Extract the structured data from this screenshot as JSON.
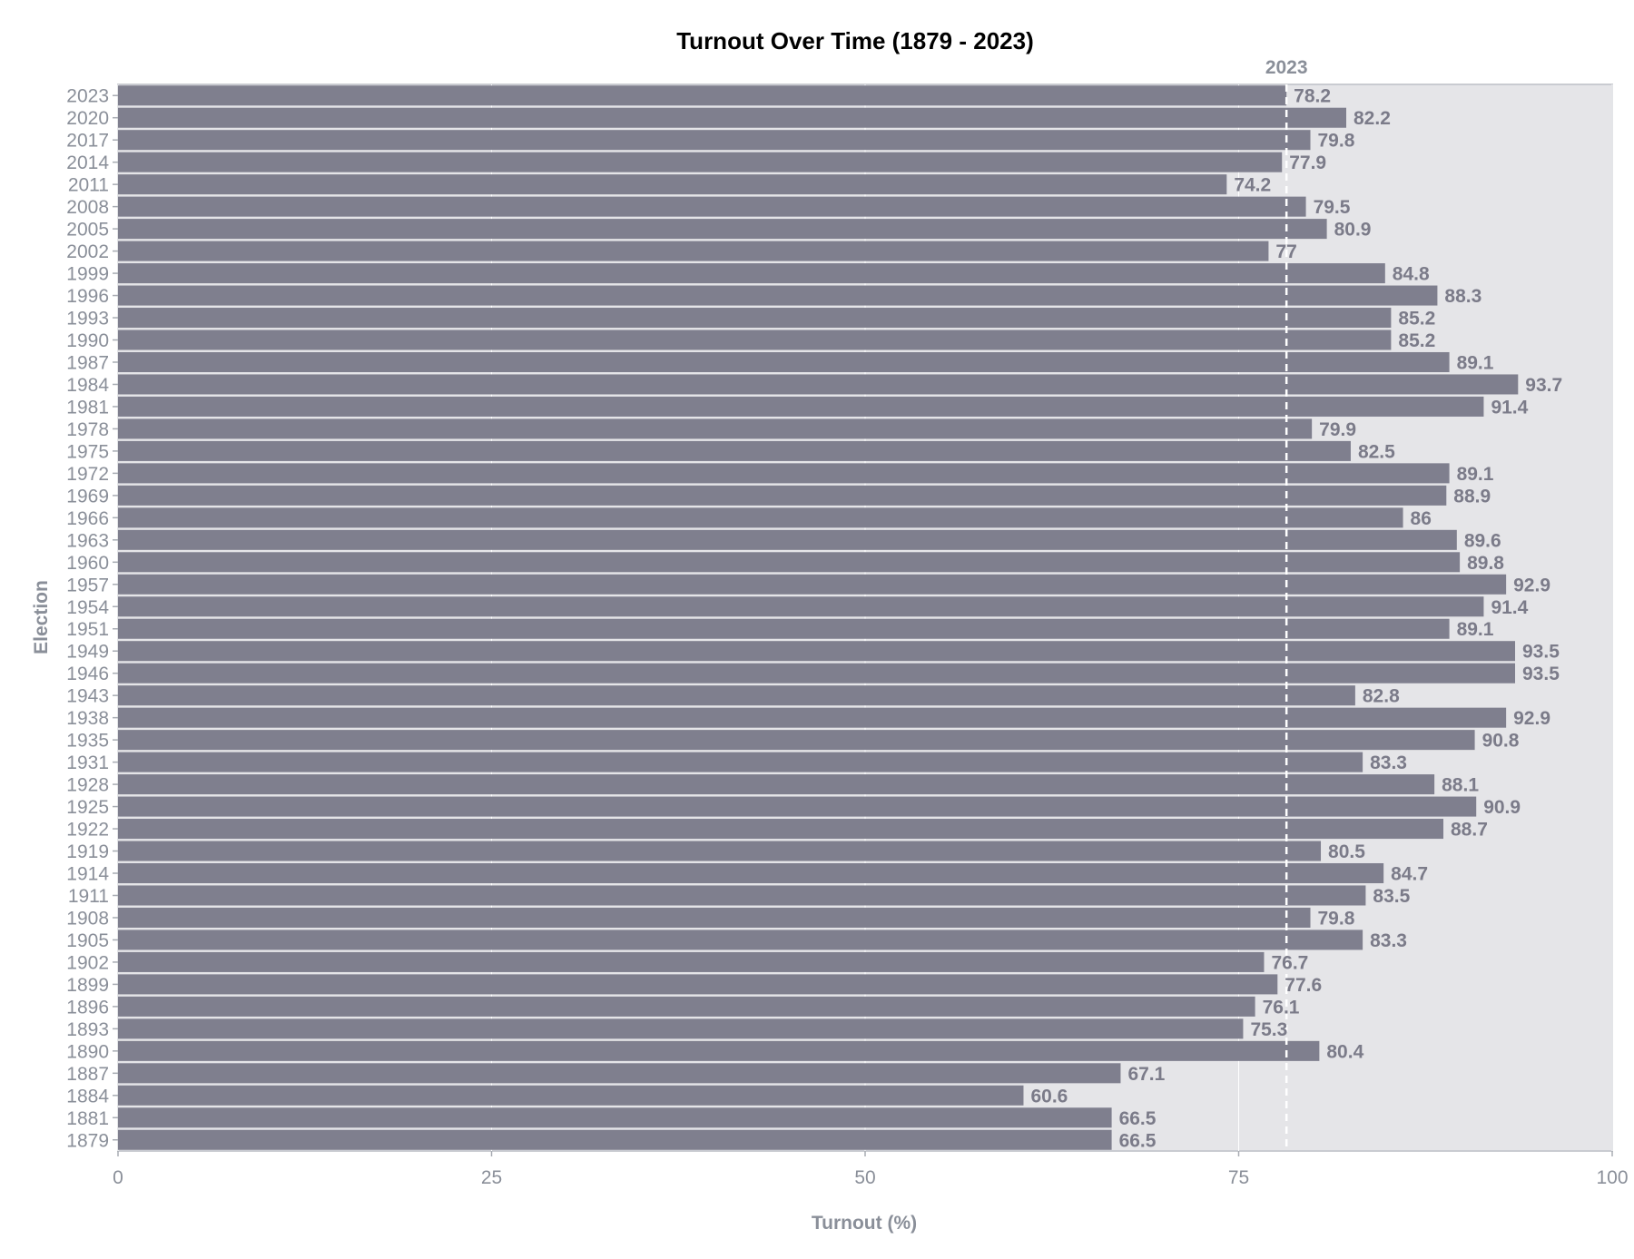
{
  "chart_data": {
    "type": "bar",
    "orientation": "horizontal",
    "title": "Turnout Over Time (1879 - 2023)",
    "xlabel": "Turnout (%)",
    "ylabel": "Election",
    "xlim": [
      0,
      100
    ],
    "x_ticks": [
      "0",
      "25",
      "50",
      "75",
      "100"
    ],
    "reference_line": {
      "value": 78.2,
      "label": "2023"
    },
    "categories": [
      "2023",
      "2020",
      "2017",
      "2014",
      "2011",
      "2008",
      "2005",
      "2002",
      "1999",
      "1996",
      "1993",
      "1990",
      "1987",
      "1984",
      "1981",
      "1978",
      "1975",
      "1972",
      "1969",
      "1966",
      "1963",
      "1960",
      "1957",
      "1954",
      "1951",
      "1949",
      "1946",
      "1943",
      "1938",
      "1935",
      "1931",
      "1928",
      "1925",
      "1922",
      "1919",
      "1914",
      "1911",
      "1908",
      "1905",
      "1902",
      "1899",
      "1896",
      "1893",
      "1890",
      "1887",
      "1884",
      "1881",
      "1879"
    ],
    "values": [
      78.2,
      82.2,
      79.8,
      77.9,
      74.2,
      79.5,
      80.9,
      77,
      84.8,
      88.3,
      85.2,
      85.2,
      89.1,
      93.7,
      91.4,
      79.9,
      82.5,
      89.1,
      88.9,
      86,
      89.6,
      89.8,
      92.9,
      91.4,
      89.1,
      93.5,
      93.5,
      82.8,
      92.9,
      90.8,
      83.3,
      88.1,
      90.9,
      88.7,
      80.5,
      84.7,
      83.5,
      79.8,
      83.3,
      76.7,
      77.6,
      76.1,
      75.3,
      80.4,
      67.1,
      60.6,
      66.5,
      66.5
    ],
    "value_labels": [
      "78.2",
      "82.2",
      "79.8",
      "77.9",
      "74.2",
      "79.5",
      "80.9",
      "77",
      "84.8",
      "88.3",
      "85.2",
      "85.2",
      "89.1",
      "93.7",
      "91.4",
      "79.9",
      "82.5",
      "89.1",
      "88.9",
      "86",
      "89.6",
      "89.8",
      "92.9",
      "91.4",
      "89.1",
      "93.5",
      "93.5",
      "82.8",
      "92.9",
      "90.8",
      "83.3",
      "88.1",
      "90.9",
      "88.7",
      "80.5",
      "84.7",
      "83.5",
      "79.8",
      "83.3",
      "76.7",
      "77.6",
      "76.1",
      "75.3",
      "80.4",
      "67.1",
      "60.6",
      "66.5",
      "66.5"
    ],
    "grid": true,
    "legend": "none",
    "colors": {
      "bar": "#7f7f8e",
      "panel": "#e5e5e8",
      "reference": "#ffffff"
    }
  }
}
